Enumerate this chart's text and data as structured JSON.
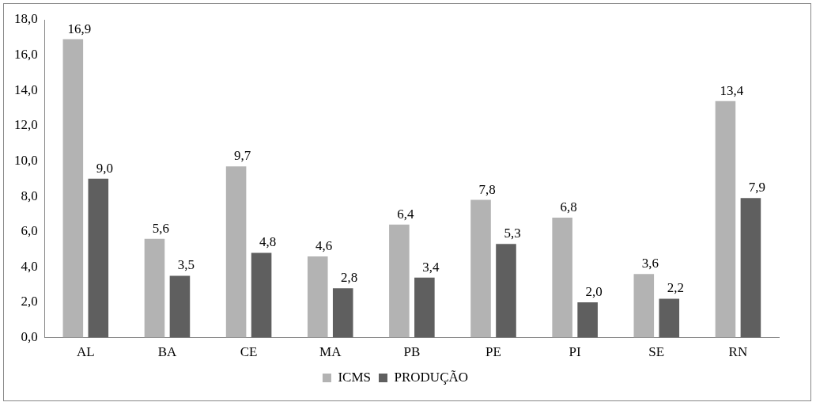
{
  "chart_data": {
    "type": "bar",
    "categories": [
      "AL",
      "BA",
      "CE",
      "MA",
      "PB",
      "PE",
      "PI",
      "SE",
      "RN"
    ],
    "series": [
      {
        "name": "ICMS",
        "color": "#b3b3b3",
        "values": [
          16.9,
          5.6,
          9.7,
          4.6,
          6.4,
          7.8,
          6.8,
          3.6,
          13.4
        ],
        "value_labels": [
          "16,9",
          "5,6",
          "9,7",
          "4,6",
          "6,4",
          "7,8",
          "6,8",
          "3,6",
          "13,4"
        ]
      },
      {
        "name": "PRODUÇÃO",
        "color": "#5f5f5f",
        "values": [
          9.0,
          3.5,
          4.8,
          2.8,
          3.4,
          5.3,
          2.0,
          2.2,
          7.9
        ],
        "value_labels": [
          "9,0",
          "3,5",
          "4,8",
          "2,8",
          "3,4",
          "5,3",
          "2,0",
          "2,2",
          "7,9"
        ]
      }
    ],
    "ylim": [
      0,
      18
    ],
    "yticks": [
      {
        "value": 0,
        "label": "0,0"
      },
      {
        "value": 2,
        "label": "2,0"
      },
      {
        "value": 4,
        "label": "4,0"
      },
      {
        "value": 6,
        "label": "6,0"
      },
      {
        "value": 8,
        "label": "8,0"
      },
      {
        "value": 10,
        "label": "10,0"
      },
      {
        "value": 12,
        "label": "12,0"
      },
      {
        "value": 14,
        "label": "14,0"
      },
      {
        "value": 16,
        "label": "16,0"
      },
      {
        "value": 18,
        "label": "18,0"
      }
    ],
    "legend": "bottom"
  }
}
